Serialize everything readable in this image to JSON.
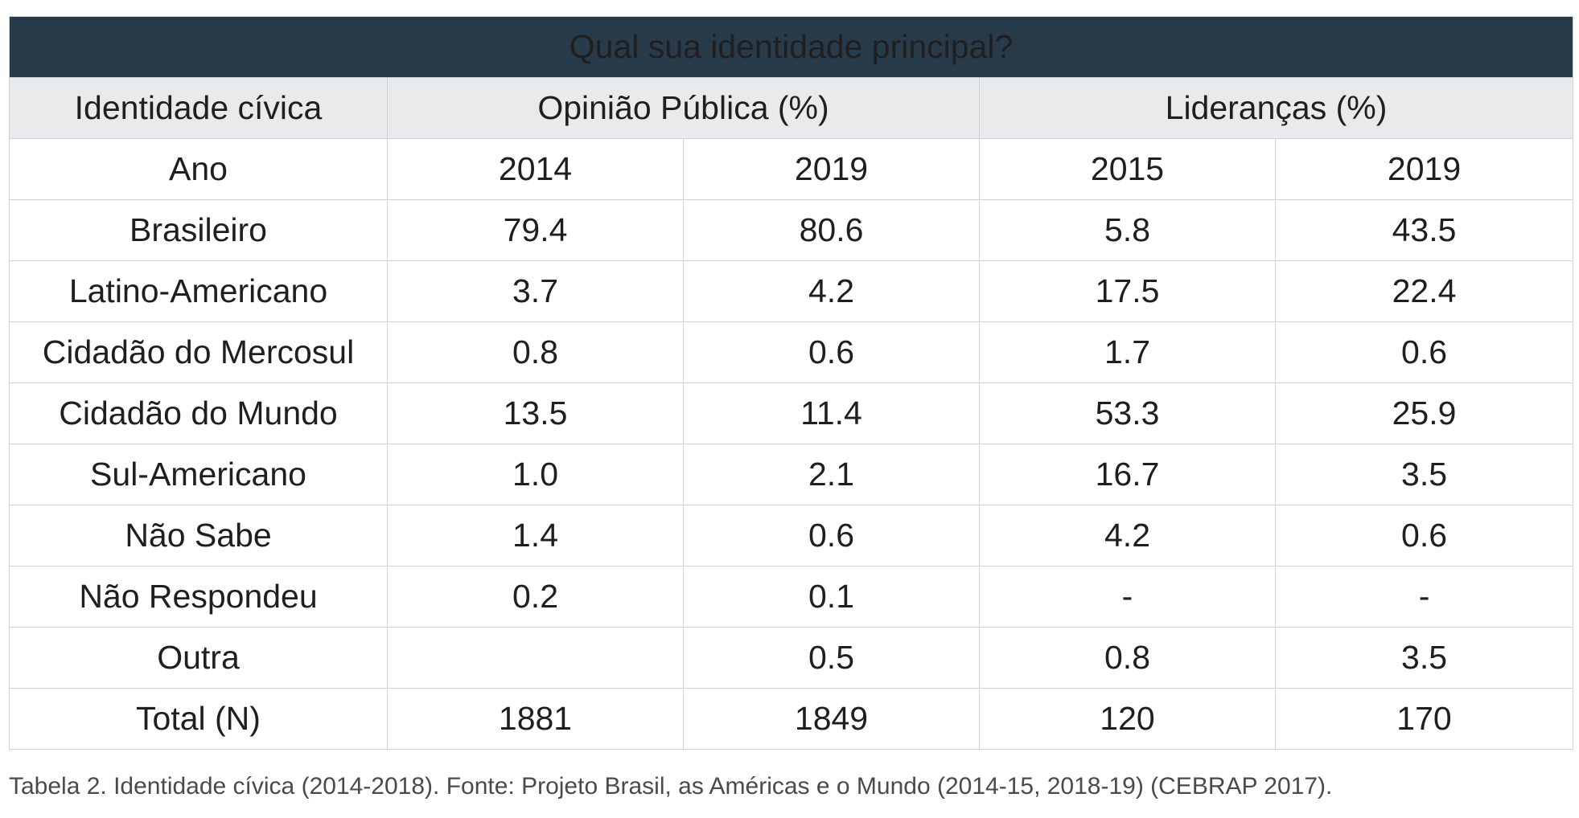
{
  "title": "Qual sua identidade principal?",
  "group_headers": {
    "col1": "Identidade cívica",
    "opiniao": "Opinião Pública (%)",
    "liderancas": "Lideranças (%)"
  },
  "chart_data": {
    "type": "table",
    "title": "Qual sua identidade principal?",
    "columns": [
      "Identidade cívica",
      "Opinião Pública (%) 2014",
      "Opinião Pública (%) 2019",
      "Lideranças (%) 2015",
      "Lideranças (%) 2019"
    ],
    "rows": [
      [
        "Ano",
        "2014",
        "2019",
        "2015",
        "2019"
      ],
      [
        "Brasileiro",
        "79.4",
        "80.6",
        "5.8",
        "43.5"
      ],
      [
        "Latino-Americano",
        "3.7",
        "4.2",
        "17.5",
        "22.4"
      ],
      [
        "Cidadão do Mercosul",
        "0.8",
        "0.6",
        "1.7",
        "0.6"
      ],
      [
        "Cidadão do Mundo",
        "13.5",
        "11.4",
        "53.3",
        "25.9"
      ],
      [
        "Sul-Americano",
        "1.0",
        "2.1",
        "16.7",
        "3.5"
      ],
      [
        "Não Sabe",
        "1.4",
        "0.6",
        "4.2",
        "0.6"
      ],
      [
        "Não Respondeu",
        "0.2",
        "0.1",
        "-",
        "-"
      ],
      [
        "Outra",
        "",
        "0.5",
        "0.8",
        "3.5"
      ],
      [
        "Total (N)",
        "1881",
        "1849",
        "120",
        "170"
      ]
    ]
  },
  "caption": "Tabela 2. Identidade cívica (2014-2018). Fonte: Projeto Brasil, as Américas e o Mundo (2014-15, 2018-19) (CEBRAP 2017)."
}
